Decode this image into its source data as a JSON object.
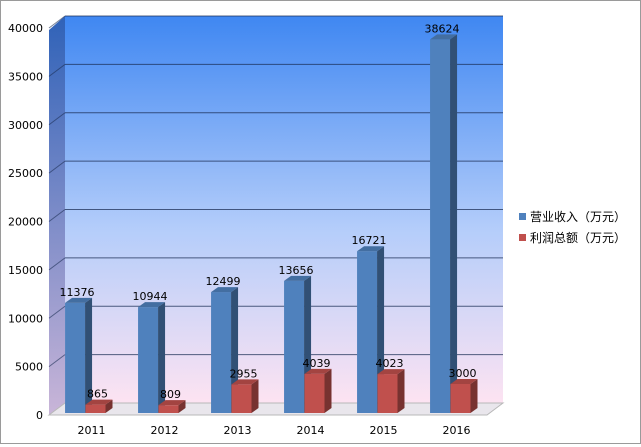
{
  "chart_data": {
    "type": "bar",
    "categories": [
      "2011",
      "2012",
      "2013",
      "2014",
      "2015",
      "2016"
    ],
    "series": [
      {
        "name": "营业收入（万元）",
        "values": [
          11376,
          10944,
          12499,
          13656,
          16721,
          38624
        ],
        "color": "#4f81bd"
      },
      {
        "name": "利润总额（万元）",
        "values": [
          865,
          809,
          2955,
          4039,
          4023,
          3000
        ],
        "color": "#c0504d"
      }
    ],
    "yticks": [
      "0",
      "5000",
      "10000",
      "15000",
      "20000",
      "25000",
      "30000",
      "35000",
      "40000"
    ],
    "ylim": [
      0,
      40000
    ],
    "grid": true,
    "legend_position": "right",
    "style": "3d-clustered-column",
    "background_gradient": [
      "#3f87f2",
      "#fde3f2"
    ]
  }
}
